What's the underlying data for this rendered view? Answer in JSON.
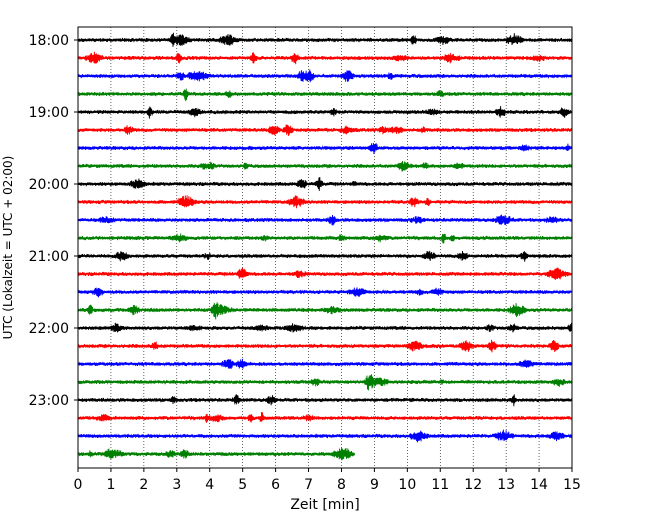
{
  "chart_data": {
    "type": "line",
    "title": "",
    "xlabel": "Zeit  [min]",
    "ylabel": "UTC (Lokalzeit = UTC + 02:00)",
    "xlim": [
      0,
      15
    ],
    "x_ticks": [
      0,
      1,
      2,
      3,
      4,
      5,
      6,
      7,
      8,
      9,
      10,
      11,
      12,
      13,
      14,
      15
    ],
    "y_tick_labels": [
      "18:00",
      "19:00",
      "20:00",
      "21:00",
      "22:00",
      "23:00"
    ],
    "grid": "vertical dotted lines at each minute",
    "line_colors": [
      "#000000",
      "#ff0000",
      "#0000ff",
      "#008000"
    ],
    "series": [
      {
        "start_time": "18:00",
        "color": "#000000",
        "x_range": [
          0,
          15
        ]
      },
      {
        "start_time": "18:15",
        "color": "#ff0000",
        "x_range": [
          0,
          15
        ]
      },
      {
        "start_time": "18:30",
        "color": "#0000ff",
        "x_range": [
          0,
          15
        ]
      },
      {
        "start_time": "18:45",
        "color": "#008000",
        "x_range": [
          0,
          15
        ]
      },
      {
        "start_time": "19:00",
        "color": "#000000",
        "x_range": [
          0,
          15
        ]
      },
      {
        "start_time": "19:15",
        "color": "#ff0000",
        "x_range": [
          0,
          15
        ]
      },
      {
        "start_time": "19:30",
        "color": "#0000ff",
        "x_range": [
          0,
          15
        ]
      },
      {
        "start_time": "19:45",
        "color": "#008000",
        "x_range": [
          0,
          15
        ]
      },
      {
        "start_time": "20:00",
        "color": "#000000",
        "x_range": [
          0,
          15
        ]
      },
      {
        "start_time": "20:15",
        "color": "#ff0000",
        "x_range": [
          0,
          15
        ]
      },
      {
        "start_time": "20:30",
        "color": "#0000ff",
        "x_range": [
          0,
          15
        ]
      },
      {
        "start_time": "20:45",
        "color": "#008000",
        "x_range": [
          0,
          15
        ]
      },
      {
        "start_time": "21:00",
        "color": "#000000",
        "x_range": [
          0,
          15
        ]
      },
      {
        "start_time": "21:15",
        "color": "#ff0000",
        "x_range": [
          0,
          15
        ]
      },
      {
        "start_time": "21:30",
        "color": "#0000ff",
        "x_range": [
          0,
          15
        ]
      },
      {
        "start_time": "21:45",
        "color": "#008000",
        "x_range": [
          0,
          15
        ]
      },
      {
        "start_time": "22:00",
        "color": "#000000",
        "x_range": [
          0,
          15
        ]
      },
      {
        "start_time": "22:15",
        "color": "#ff0000",
        "x_range": [
          0,
          15
        ]
      },
      {
        "start_time": "22:30",
        "color": "#0000ff",
        "x_range": [
          0,
          15
        ]
      },
      {
        "start_time": "22:45",
        "color": "#008000",
        "x_range": [
          0,
          15
        ]
      },
      {
        "start_time": "23:00",
        "color": "#000000",
        "x_range": [
          0,
          15
        ]
      },
      {
        "start_time": "23:15",
        "color": "#ff0000",
        "x_range": [
          0,
          15
        ]
      },
      {
        "start_time": "23:30",
        "color": "#0000ff",
        "x_range": [
          0,
          15
        ]
      },
      {
        "start_time": "23:45",
        "color": "#008000",
        "x_range": [
          0,
          8.4
        ]
      }
    ]
  }
}
